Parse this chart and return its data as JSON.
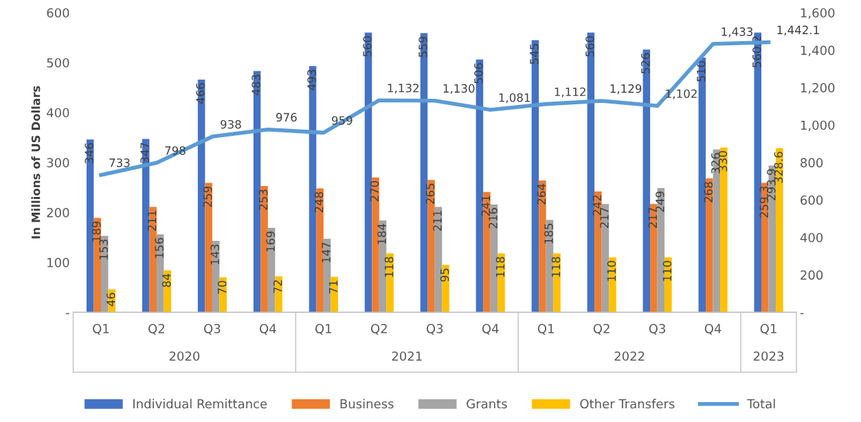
{
  "chart_data": {
    "type": "bar",
    "ylabel": "In Millions of US Dollars",
    "categories": [
      "Q1",
      "Q2",
      "Q3",
      "Q4",
      "Q1",
      "Q2",
      "Q3",
      "Q4",
      "Q1",
      "Q2",
      "Q3",
      "Q4",
      "Q1"
    ],
    "annotations": [
      "2020",
      "2021",
      "2022",
      "2023"
    ],
    "series": [
      {
        "name": "Individual Remittance",
        "color": "#4472c4",
        "values": [
          346,
          347,
          466,
          483,
          493,
          560,
          559,
          506,
          545,
          560,
          526,
          510,
          560.2
        ]
      },
      {
        "name": "Business",
        "color": "#ed7d31",
        "values": [
          189,
          211,
          259,
          253,
          248,
          270,
          265,
          241,
          264,
          242,
          217,
          268,
          259.3
        ]
      },
      {
        "name": "Grants",
        "color": "#a5a5a5",
        "values": [
          153,
          156,
          143,
          169,
          147,
          184,
          211,
          216,
          185,
          217,
          249,
          326,
          293.9
        ]
      },
      {
        "name": "Other Transfers",
        "color": "#ffc000",
        "values": [
          46,
          84,
          70,
          72,
          71,
          118,
          95,
          118,
          118,
          110,
          110,
          330,
          328.6
        ]
      },
      {
        "name": "Total",
        "type": "line",
        "axis": "y2",
        "color": "#5b9bd5",
        "values": [
          733,
          798,
          938,
          976,
          959,
          1132,
          1130,
          1081,
          1112,
          1129,
          1102,
          1433,
          1442.1
        ],
        "value_labels": [
          "733",
          "798",
          "938",
          "976",
          "959",
          "1,132",
          "1,130",
          "1,081",
          "1,112",
          "1,129",
          "1,102",
          "1,433",
          "1,442.1"
        ]
      }
    ],
    "ylim": [
      0,
      600
    ],
    "yticks": [
      {
        "value": 0,
        "label": "-"
      },
      100,
      200,
      300,
      400,
      500,
      600
    ],
    "y2lim": [
      0,
      1600
    ],
    "y2ticks": [
      {
        "value": 0,
        "label": "-"
      },
      {
        "value": 200,
        "label": "200"
      },
      {
        "value": 400,
        "label": "400"
      },
      {
        "value": 600,
        "label": "600"
      },
      {
        "value": 800,
        "label": "800"
      },
      {
        "value": 1000,
        "label": "1,000"
      },
      {
        "value": 1200,
        "label": "1,200"
      },
      {
        "value": 1400,
        "label": "1,400"
      },
      {
        "value": 1600,
        "label": "1,600"
      }
    ],
    "data_labels": true,
    "legend": "bottom",
    "grid": false,
    "marker": "none",
    "line_style": "solid"
  }
}
